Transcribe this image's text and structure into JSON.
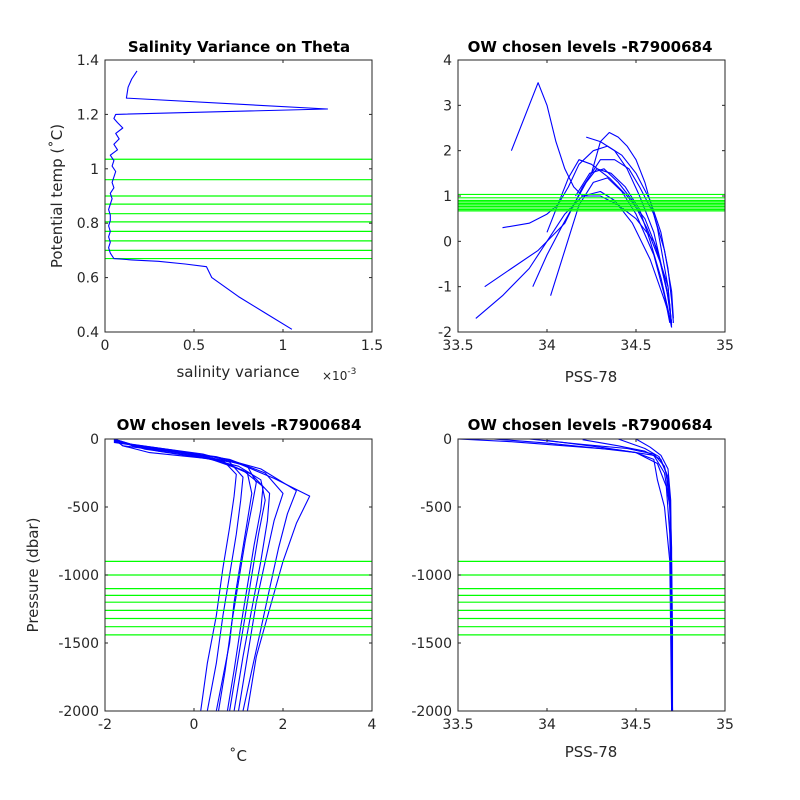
{
  "colors": {
    "profiles": "#0000ff",
    "levels": "#00ff00",
    "axes": "#262626"
  },
  "chart_data": [
    {
      "type": "line",
      "title": "Salinity Variance on Theta",
      "xlabel": "salinity variance",
      "x_exponent_label": "×10",
      "x_exponent_power": "-3",
      "ylabel": "Potential temp (˚C)",
      "xlim": [
        0,
        0.0015
      ],
      "ylim": [
        0.4,
        1.4
      ],
      "xticks": [
        0,
        0.0005,
        0.001,
        0.0015
      ],
      "xtick_labels": [
        "0",
        "0.5",
        "1",
        "1.5"
      ],
      "yticks": [
        0.4,
        0.6,
        0.8,
        1.0,
        1.2,
        1.4
      ],
      "ytick_labels": [
        "0.4",
        "0.6",
        "0.8",
        "1",
        "1.2",
        "1.4"
      ],
      "series": [
        {
          "x": [
            0.00105,
            0.0009,
            0.00075,
            0.0006,
            0.00057,
            0.00045,
            0.0003,
            0.00015,
            5e-05,
            3e-05,
            2e-05,
            3e-05,
            2e-05,
            3e-05,
            2e-05,
            3e-05,
            3e-05,
            2e-05,
            3e-05,
            4e-05,
            3e-05,
            5e-05,
            4e-05,
            5e-05,
            6e-05,
            4e-05,
            5e-05,
            3e-05,
            7e-05,
            5e-05,
            8e-05,
            6e-05,
            0.0001,
            7e-05,
            5e-05,
            6e-05,
            0.00125,
            0.00012,
            0.00013,
            0.00015,
            0.00018
          ],
          "y": [
            0.41,
            0.47,
            0.53,
            0.6,
            0.64,
            0.65,
            0.66,
            0.665,
            0.67,
            0.69,
            0.71,
            0.73,
            0.75,
            0.77,
            0.79,
            0.81,
            0.83,
            0.85,
            0.87,
            0.89,
            0.91,
            0.93,
            0.95,
            0.97,
            0.99,
            1.01,
            1.03,
            1.05,
            1.07,
            1.09,
            1.11,
            1.13,
            1.15,
            1.17,
            1.185,
            1.2,
            1.22,
            1.26,
            1.3,
            1.33,
            1.36
          ]
        }
      ],
      "hlines": [
        0.67,
        0.7,
        0.735,
        0.77,
        0.805,
        0.835,
        0.87,
        0.9,
        0.96,
        1.035
      ],
      "grid": false
    },
    {
      "type": "line",
      "title": "OW chosen levels -R7900684",
      "xlabel": "PSS-78",
      "ylabel": "",
      "xlim": [
        33.5,
        35
      ],
      "ylim": [
        -2,
        4
      ],
      "xticks": [
        33.5,
        34,
        34.5,
        35
      ],
      "xtick_labels": [
        "33.5",
        "34",
        "34.5",
        "35"
      ],
      "yticks": [
        -2,
        -1,
        0,
        1,
        2,
        3,
        4
      ],
      "ytick_labels": [
        "-2",
        "-1",
        "0",
        "1",
        "2",
        "3",
        "4"
      ],
      "series": [
        {
          "x": [
            34.69,
            34.68,
            34.6,
            34.5,
            34.4,
            34.3,
            34.2,
            34.15,
            34.1,
            34.05,
            34.0,
            33.95,
            33.9,
            33.8
          ],
          "y": [
            -1.5,
            -1.0,
            0.0,
            0.5,
            0.8,
            1.0,
            1.0,
            1.2,
            1.6,
            2.2,
            3.0,
            3.5,
            3.0,
            2.0
          ]
        },
        {
          "x": [
            34.7,
            34.68,
            34.62,
            34.55,
            34.45,
            34.35,
            34.25,
            34.18,
            34.12,
            34.06,
            34.0
          ],
          "y": [
            -1.8,
            -1.2,
            -0.2,
            0.5,
            1.0,
            1.4,
            1.7,
            1.8,
            1.4,
            0.8,
            0.2
          ]
        },
        {
          "x": [
            34.7,
            34.67,
            34.6,
            34.52,
            34.45,
            34.38,
            34.3,
            34.22
          ],
          "y": [
            -1.8,
            -1.0,
            0.2,
            1.0,
            1.6,
            2.0,
            2.2,
            2.3
          ]
        },
        {
          "x": [
            34.7,
            34.66,
            34.58,
            34.48,
            34.38,
            34.3,
            34.2,
            34.1,
            34.0,
            33.9,
            33.75,
            33.6
          ],
          "y": [
            -1.8,
            -1.3,
            -0.4,
            0.4,
            0.9,
            1.1,
            1.0,
            0.6,
            0.0,
            -0.6,
            -1.2,
            -1.7
          ]
        },
        {
          "x": [
            34.7,
            34.69,
            34.64,
            34.56,
            34.48,
            34.4,
            34.32,
            34.24,
            34.16
          ],
          "y": [
            -1.9,
            -1.4,
            -0.5,
            0.3,
            0.9,
            1.3,
            1.6,
            1.5,
            1.0
          ]
        },
        {
          "x": [
            34.71,
            34.7,
            34.66,
            34.6,
            34.52,
            34.46,
            34.38,
            34.3,
            34.2,
            34.1,
            33.95,
            33.8,
            33.65
          ],
          "y": [
            -1.7,
            -1.1,
            -0.2,
            0.6,
            1.2,
            1.6,
            1.8,
            1.8,
            1.2,
            0.4,
            -0.2,
            -0.6,
            -1.0
          ]
        },
        {
          "x": [
            34.7,
            34.68,
            34.62,
            34.55,
            34.5,
            34.45,
            34.4,
            34.35,
            34.3,
            34.25
          ],
          "y": [
            -1.85,
            -1.0,
            0.3,
            1.3,
            1.8,
            2.1,
            2.3,
            2.4,
            2.2,
            1.5
          ]
        },
        {
          "x": [
            34.69,
            34.66,
            34.6,
            34.5,
            34.42,
            34.34,
            34.26,
            34.18,
            34.1,
            34.02
          ],
          "y": [
            -1.8,
            -1.2,
            -0.3,
            0.6,
            1.1,
            1.4,
            1.3,
            0.8,
            -0.2,
            -1.2
          ]
        },
        {
          "x": [
            34.7,
            34.68,
            34.64,
            34.58,
            34.52,
            34.44,
            34.36,
            34.28,
            34.22,
            34.15,
            34.08,
            34.0,
            33.92
          ],
          "y": [
            -1.9,
            -1.5,
            -0.8,
            0.0,
            0.7,
            1.2,
            1.5,
            1.6,
            1.3,
            0.8,
            0.3,
            -0.3,
            -1.0
          ]
        },
        {
          "x": [
            34.71,
            34.7,
            34.68,
            34.64,
            34.58,
            34.5,
            34.42,
            34.34,
            34.26,
            34.18,
            34.12,
            34.06,
            34.0,
            33.9,
            33.75
          ],
          "y": [
            -1.8,
            -1.3,
            -0.6,
            0.2,
            0.9,
            1.5,
            1.9,
            2.1,
            2.0,
            1.7,
            1.2,
            0.8,
            0.6,
            0.4,
            0.3
          ]
        }
      ],
      "hlines": [
        0.67,
        0.7,
        0.735,
        0.77,
        0.805,
        0.835,
        0.87,
        0.9,
        0.96,
        1.035
      ],
      "grid": false
    },
    {
      "type": "line",
      "title": "OW chosen levels -R7900684",
      "xlabel": "˚C",
      "ylabel": "Pressure (dbar)",
      "xlim": [
        -2,
        4
      ],
      "ylim": [
        -2000,
        0
      ],
      "xticks": [
        -2,
        0,
        2,
        4
      ],
      "xtick_labels": [
        "-2",
        "0",
        "2",
        "4"
      ],
      "yticks": [
        -2000,
        -1500,
        -1000,
        -500,
        0
      ],
      "ytick_labels": [
        "-2000",
        "-1500",
        "-1000",
        "-500",
        "0"
      ],
      "series": [
        {
          "x": [
            -1.8,
            -1.6,
            -1.0,
            0.5,
            1.2,
            1.3,
            1.2,
            1.05,
            0.9,
            0.8,
            0.5
          ],
          "y": [
            0,
            -50,
            -100,
            -150,
            -250,
            -400,
            -600,
            -900,
            -1200,
            -1500,
            -2000
          ]
        },
        {
          "x": [
            -1.7,
            -1.2,
            0.0,
            1.0,
            1.5,
            1.6,
            1.45,
            1.3,
            1.15,
            1.0,
            0.8
          ],
          "y": [
            -10,
            -60,
            -120,
            -200,
            -300,
            -450,
            -700,
            -1000,
            -1300,
            -1600,
            -2000
          ]
        },
        {
          "x": [
            -1.8,
            -0.5,
            0.8,
            1.6,
            2.0,
            1.8,
            1.6,
            1.4,
            1.2,
            1.0
          ],
          "y": [
            -20,
            -80,
            -150,
            -250,
            -400,
            -600,
            -900,
            -1200,
            -1600,
            -2000
          ]
        },
        {
          "x": [
            -1.8,
            -1.3,
            -0.2,
            0.8,
            1.1,
            1.05,
            0.95,
            0.8,
            0.65,
            0.5,
            0.3
          ],
          "y": [
            0,
            -60,
            -100,
            -170,
            -280,
            -450,
            -700,
            -1000,
            -1300,
            -1650,
            -2000
          ]
        },
        {
          "x": [
            -1.8,
            -1.0,
            0.5,
            1.5,
            2.3,
            2.1,
            1.9,
            1.7,
            1.5,
            1.3,
            1.1
          ],
          "y": [
            -10,
            -70,
            -130,
            -220,
            -380,
            -550,
            -800,
            -1100,
            -1400,
            -1700,
            -2000
          ]
        },
        {
          "x": [
            -1.8,
            -1.4,
            0.2,
            1.2,
            1.4,
            1.3,
            1.15,
            1.0,
            0.85,
            0.7,
            0.55
          ],
          "y": [
            0,
            -40,
            -110,
            -200,
            -320,
            -500,
            -750,
            -1050,
            -1350,
            -1700,
            -2000
          ]
        },
        {
          "x": [
            -1.8,
            -0.8,
            0.6,
            1.3,
            1.7,
            1.65,
            1.5,
            1.3,
            1.1,
            0.9
          ],
          "y": [
            -15,
            -90,
            -160,
            -260,
            -400,
            -600,
            -900,
            -1250,
            -1600,
            -2000
          ]
        },
        {
          "x": [
            -1.8,
            -1.6,
            -0.6,
            0.6,
            0.95,
            0.9,
            0.8,
            0.65,
            0.5,
            0.3,
            0.15
          ],
          "y": [
            0,
            -50,
            -90,
            -140,
            -260,
            -420,
            -650,
            -950,
            -1300,
            -1650,
            -2000
          ]
        },
        {
          "x": [
            -1.8,
            -1.1,
            0.3,
            1.1,
            1.55,
            1.5,
            1.35,
            1.2,
            1.05,
            0.9,
            0.75
          ],
          "y": [
            -5,
            -75,
            -140,
            -230,
            -350,
            -520,
            -780,
            -1080,
            -1380,
            -1700,
            -2000
          ]
        },
        {
          "x": [
            -1.8,
            -0.2,
            1.0,
            1.8,
            2.6,
            2.3,
            2.0,
            1.7,
            1.4,
            1.2
          ],
          "y": [
            -25,
            -100,
            -180,
            -290,
            -420,
            -620,
            -900,
            -1250,
            -1600,
            -2000
          ]
        }
      ],
      "hlines": [
        -900,
        -1000,
        -1100,
        -1150,
        -1200,
        -1260,
        -1320,
        -1380,
        -1440
      ],
      "grid": false
    },
    {
      "type": "line",
      "title": "OW chosen levels -R7900684",
      "xlabel": "PSS-78",
      "ylabel": "",
      "xlim": [
        33.5,
        35
      ],
      "ylim": [
        -2000,
        0
      ],
      "xticks": [
        33.5,
        34,
        34.5,
        35
      ],
      "xtick_labels": [
        "33.5",
        "34",
        "34.5",
        "35"
      ],
      "yticks": [
        -2000,
        -1500,
        -1000,
        -500,
        0
      ],
      "ytick_labels": [
        "-2000",
        "-1500",
        "-1000",
        "-500",
        "0"
      ],
      "series": [
        {
          "x": [
            33.5,
            33.8,
            34.1,
            34.4,
            34.6,
            34.66,
            34.69,
            34.7,
            34.705,
            34.705
          ],
          "y": [
            0,
            -20,
            -50,
            -80,
            -120,
            -250,
            -500,
            -900,
            -1400,
            -2000
          ]
        },
        {
          "x": [
            33.9,
            34.2,
            34.45,
            34.6,
            34.66,
            34.69,
            34.7,
            34.7,
            34.705
          ],
          "y": [
            0,
            -40,
            -70,
            -110,
            -200,
            -400,
            -800,
            -1400,
            -2000
          ]
        },
        {
          "x": [
            34.2,
            34.4,
            34.55,
            34.64,
            34.68,
            34.695,
            34.7,
            34.705
          ],
          "y": [
            -5,
            -50,
            -90,
            -150,
            -280,
            -600,
            -1200,
            -2000
          ]
        },
        {
          "x": [
            33.7,
            34.0,
            34.3,
            34.5,
            34.62,
            34.67,
            34.69,
            34.7,
            34.7
          ],
          "y": [
            0,
            -30,
            -70,
            -100,
            -180,
            -350,
            -700,
            -1300,
            -2000
          ]
        },
        {
          "x": [
            34.5,
            34.58,
            34.64,
            34.68,
            34.695,
            34.7,
            34.705
          ],
          "y": [
            0,
            -60,
            -120,
            -220,
            -450,
            -1000,
            -2000
          ]
        },
        {
          "x": [
            34.0,
            34.3,
            34.5,
            34.6,
            34.62,
            34.66,
            34.69,
            34.7
          ],
          "y": [
            -10,
            -60,
            -100,
            -150,
            -300,
            -500,
            -900,
            -2000
          ]
        },
        {
          "x": [
            34.4,
            34.55,
            34.63,
            34.67,
            34.69,
            34.7,
            34.7
          ],
          "y": [
            0,
            -70,
            -130,
            -250,
            -500,
            -1100,
            -2000
          ]
        }
      ],
      "hlines": [
        -900,
        -1000,
        -1100,
        -1150,
        -1200,
        -1260,
        -1320,
        -1380,
        -1440
      ],
      "grid": false
    }
  ]
}
